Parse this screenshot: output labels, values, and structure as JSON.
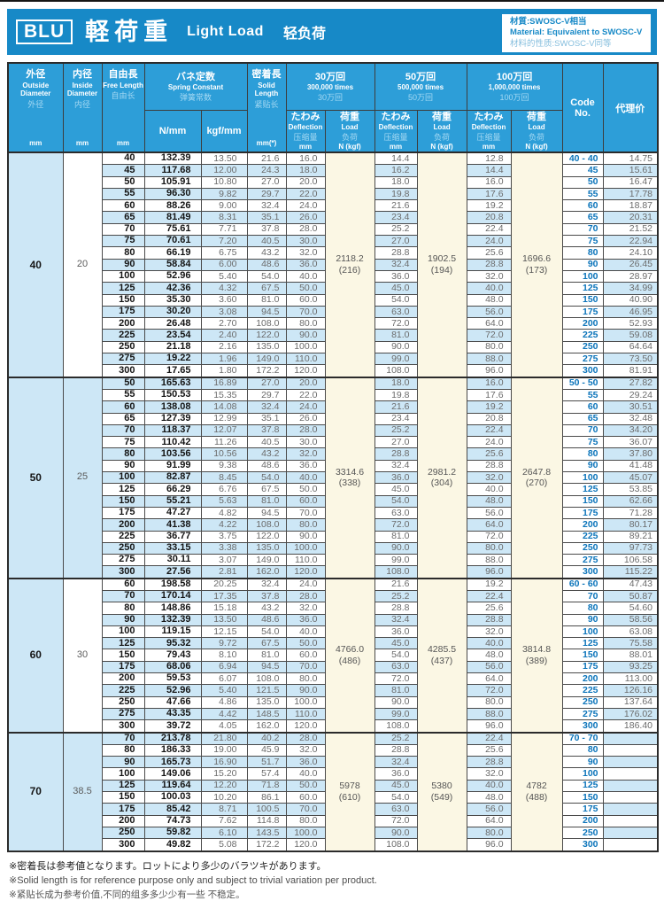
{
  "header": {
    "model": "BLU",
    "title_ja": "軽荷重",
    "title_en": "Light Load",
    "title_zh": "轻负荷",
    "material": {
      "line1": "材質:SWOSC-V相当",
      "line2": "Material: Equivalent to SWOSC-V",
      "line3": "材料的性质:SWOSC-V同等"
    }
  },
  "columns": {
    "od": {
      "ja": "外径",
      "en": "Outside Diameter",
      "zh": "外径",
      "unit": "mm"
    },
    "id": {
      "ja": "内径",
      "en": "Inside Diameter",
      "zh": "内径",
      "unit": "mm"
    },
    "fl": {
      "ja": "自由長",
      "en": "Free Length",
      "zh": "自由长",
      "unit": "mm"
    },
    "spring": {
      "ja": "バネ定数",
      "en": "Spring Constant",
      "zh": "弹簧常数",
      "unit_n": "N/mm",
      "unit_kgf": "kgf/mm"
    },
    "sl": {
      "ja": "密着長",
      "en": "Solid Length",
      "zh": "紧贴长",
      "unit": "mm(*)"
    },
    "cycles": [
      {
        "ja": "30万回",
        "en": "300,000 times",
        "zh": "30万回"
      },
      {
        "ja": "50万回",
        "en": "500,000 times",
        "zh": "50万回"
      },
      {
        "ja": "100万回",
        "en": "1,000,000 times",
        "zh": "100万回"
      }
    ],
    "deflection": {
      "ja": "たわみ",
      "en": "Deflection",
      "zh": "压缩量",
      "unit": "mm"
    },
    "load": {
      "ja": "荷重",
      "en": "Load",
      "zh": "负荷",
      "unit": "N (kgf)"
    },
    "code": "Code No.",
    "price": "代理价"
  },
  "table": {
    "groups": [
      {
        "od": "40",
        "id": "20",
        "load_300k": {
          "n": "2118.2",
          "kgf": "(216)"
        },
        "load_500k": {
          "n": "1902.5",
          "kgf": "(194)"
        },
        "load_1m": {
          "n": "1696.6",
          "kgf": "(173)"
        },
        "rows": [
          [
            "40",
            "132.39",
            "13.50",
            "21.6",
            "16.0",
            "14.4",
            "12.8",
            "40 - 40",
            "14.75"
          ],
          [
            "45",
            "117.68",
            "12.00",
            "24.3",
            "18.0",
            "16.2",
            "14.4",
            "45",
            "15.61"
          ],
          [
            "50",
            "105.91",
            "10.80",
            "27.0",
            "20.0",
            "18.0",
            "16.0",
            "50",
            "16.47"
          ],
          [
            "55",
            "96.30",
            "9.82",
            "29.7",
            "22.0",
            "19.8",
            "17.6",
            "55",
            "17.78"
          ],
          [
            "60",
            "88.26",
            "9.00",
            "32.4",
            "24.0",
            "21.6",
            "19.2",
            "60",
            "18.87"
          ],
          [
            "65",
            "81.49",
            "8.31",
            "35.1",
            "26.0",
            "23.4",
            "20.8",
            "65",
            "20.31"
          ],
          [
            "70",
            "75.61",
            "7.71",
            "37.8",
            "28.0",
            "25.2",
            "22.4",
            "70",
            "21.52"
          ],
          [
            "75",
            "70.61",
            "7.20",
            "40.5",
            "30.0",
            "27.0",
            "24.0",
            "75",
            "22.94"
          ],
          [
            "80",
            "66.19",
            "6.75",
            "43.2",
            "32.0",
            "28.8",
            "25.6",
            "80",
            "24.10"
          ],
          [
            "90",
            "58.84",
            "6.00",
            "48.6",
            "36.0",
            "32.4",
            "28.8",
            "90",
            "26.45"
          ],
          [
            "100",
            "52.96",
            "5.40",
            "54.0",
            "40.0",
            "36.0",
            "32.0",
            "100",
            "28.97"
          ],
          [
            "125",
            "42.36",
            "4.32",
            "67.5",
            "50.0",
            "45.0",
            "40.0",
            "125",
            "34.99"
          ],
          [
            "150",
            "35.30",
            "3.60",
            "81.0",
            "60.0",
            "54.0",
            "48.0",
            "150",
            "40.90"
          ],
          [
            "175",
            "30.20",
            "3.08",
            "94.5",
            "70.0",
            "63.0",
            "56.0",
            "175",
            "46.95"
          ],
          [
            "200",
            "26.48",
            "2.70",
            "108.0",
            "80.0",
            "72.0",
            "64.0",
            "200",
            "52.93"
          ],
          [
            "225",
            "23.54",
            "2.40",
            "122.0",
            "90.0",
            "81.0",
            "72.0",
            "225",
            "59.08"
          ],
          [
            "250",
            "21.18",
            "2.16",
            "135.0",
            "100.0",
            "90.0",
            "80.0",
            "250",
            "64.64"
          ],
          [
            "275",
            "19.22",
            "1.96",
            "149.0",
            "110.0",
            "99.0",
            "88.0",
            "275",
            "73.50"
          ],
          [
            "300",
            "17.65",
            "1.80",
            "172.2",
            "120.0",
            "108.0",
            "96.0",
            "300",
            "81.91"
          ]
        ]
      },
      {
        "od": "50",
        "id": "25",
        "load_300k": {
          "n": "3314.6",
          "kgf": "(338)"
        },
        "load_500k": {
          "n": "2981.2",
          "kgf": "(304)"
        },
        "load_1m": {
          "n": "2647.8",
          "kgf": "(270)"
        },
        "rows": [
          [
            "50",
            "165.63",
            "16.89",
            "27.0",
            "20.0",
            "18.0",
            "16.0",
            "50 - 50",
            "27.82"
          ],
          [
            "55",
            "150.53",
            "15.35",
            "29.7",
            "22.0",
            "19.8",
            "17.6",
            "55",
            "29.24"
          ],
          [
            "60",
            "138.08",
            "14.08",
            "32.4",
            "24.0",
            "21.6",
            "19.2",
            "60",
            "30.51"
          ],
          [
            "65",
            "127.39",
            "12.99",
            "35.1",
            "26.0",
            "23.4",
            "20.8",
            "65",
            "32.48"
          ],
          [
            "70",
            "118.37",
            "12.07",
            "37.8",
            "28.0",
            "25.2",
            "22.4",
            "70",
            "34.20"
          ],
          [
            "75",
            "110.42",
            "11.26",
            "40.5",
            "30.0",
            "27.0",
            "24.0",
            "75",
            "36.07"
          ],
          [
            "80",
            "103.56",
            "10.56",
            "43.2",
            "32.0",
            "28.8",
            "25.6",
            "80",
            "37.80"
          ],
          [
            "90",
            "91.99",
            "9.38",
            "48.6",
            "36.0",
            "32.4",
            "28.8",
            "90",
            "41.48"
          ],
          [
            "100",
            "82.87",
            "8.45",
            "54.0",
            "40.0",
            "36.0",
            "32.0",
            "100",
            "45.07"
          ],
          [
            "125",
            "66.29",
            "6.76",
            "67.5",
            "50.0",
            "45.0",
            "40.0",
            "125",
            "53.85"
          ],
          [
            "150",
            "55.21",
            "5.63",
            "81.0",
            "60.0",
            "54.0",
            "48.0",
            "150",
            "62.66"
          ],
          [
            "175",
            "47.27",
            "4.82",
            "94.5",
            "70.0",
            "63.0",
            "56.0",
            "175",
            "71.28"
          ],
          [
            "200",
            "41.38",
            "4.22",
            "108.0",
            "80.0",
            "72.0",
            "64.0",
            "200",
            "80.17"
          ],
          [
            "225",
            "36.77",
            "3.75",
            "122.0",
            "90.0",
            "81.0",
            "72.0",
            "225",
            "89.21"
          ],
          [
            "250",
            "33.15",
            "3.38",
            "135.0",
            "100.0",
            "90.0",
            "80.0",
            "250",
            "97.73"
          ],
          [
            "275",
            "30.11",
            "3.07",
            "149.0",
            "110.0",
            "99.0",
            "88.0",
            "275",
            "106.58"
          ],
          [
            "300",
            "27.56",
            "2.81",
            "162.0",
            "120.0",
            "108.0",
            "96.0",
            "300",
            "115.22"
          ]
        ]
      },
      {
        "od": "60",
        "id": "30",
        "load_300k": {
          "n": "4766.0",
          "kgf": "(486)"
        },
        "load_500k": {
          "n": "4285.5",
          "kgf": "(437)"
        },
        "load_1m": {
          "n": "3814.8",
          "kgf": "(389)"
        },
        "rows": [
          [
            "60",
            "198.58",
            "20.25",
            "32.4",
            "24.0",
            "21.6",
            "19.2",
            "60 - 60",
            "47.43"
          ],
          [
            "70",
            "170.14",
            "17.35",
            "37.8",
            "28.0",
            "25.2",
            "22.4",
            "70",
            "50.87"
          ],
          [
            "80",
            "148.86",
            "15.18",
            "43.2",
            "32.0",
            "28.8",
            "25.6",
            "80",
            "54.60"
          ],
          [
            "90",
            "132.39",
            "13.50",
            "48.6",
            "36.0",
            "32.4",
            "28.8",
            "90",
            "58.56"
          ],
          [
            "100",
            "119.15",
            "12.15",
            "54.0",
            "40.0",
            "36.0",
            "32.0",
            "100",
            "63.08"
          ],
          [
            "125",
            "95.32",
            "9.72",
            "67.5",
            "50.0",
            "45.0",
            "40.0",
            "125",
            "75.58"
          ],
          [
            "150",
            "79.43",
            "8.10",
            "81.0",
            "60.0",
            "54.0",
            "48.0",
            "150",
            "88.01"
          ],
          [
            "175",
            "68.06",
            "6.94",
            "94.5",
            "70.0",
            "63.0",
            "56.0",
            "175",
            "93.25"
          ],
          [
            "200",
            "59.53",
            "6.07",
            "108.0",
            "80.0",
            "72.0",
            "64.0",
            "200",
            "113.00"
          ],
          [
            "225",
            "52.96",
            "5.40",
            "121.5",
            "90.0",
            "81.0",
            "72.0",
            "225",
            "126.16"
          ],
          [
            "250",
            "47.66",
            "4.86",
            "135.0",
            "100.0",
            "90.0",
            "80.0",
            "250",
            "137.64"
          ],
          [
            "275",
            "43.35",
            "4.42",
            "148.5",
            "110.0",
            "99.0",
            "88.0",
            "275",
            "176.02"
          ],
          [
            "300",
            "39.72",
            "4.05",
            "162.0",
            "120.0",
            "108.0",
            "96.0",
            "300",
            "186.40"
          ]
        ]
      },
      {
        "od": "70",
        "id": "38.5",
        "load_300k": {
          "n": "5978",
          "kgf": "(610)"
        },
        "load_500k": {
          "n": "5380",
          "kgf": "(549)"
        },
        "load_1m": {
          "n": "4782",
          "kgf": "(488)"
        },
        "rows": [
          [
            "70",
            "213.78",
            "21.80",
            "40.2",
            "28.0",
            "25.2",
            "22.4",
            "70 - 70",
            ""
          ],
          [
            "80",
            "186.33",
            "19.00",
            "45.9",
            "32.0",
            "28.8",
            "25.6",
            "80",
            ""
          ],
          [
            "90",
            "165.73",
            "16.90",
            "51.7",
            "36.0",
            "32.4",
            "28.8",
            "90",
            ""
          ],
          [
            "100",
            "149.06",
            "15.20",
            "57.4",
            "40.0",
            "36.0",
            "32.0",
            "100",
            ""
          ],
          [
            "125",
            "119.64",
            "12.20",
            "71.8",
            "50.0",
            "45.0",
            "40.0",
            "125",
            ""
          ],
          [
            "150",
            "100.03",
            "10.20",
            "86.1",
            "60.0",
            "54.0",
            "48.0",
            "150",
            ""
          ],
          [
            "175",
            "85.42",
            "8.71",
            "100.5",
            "70.0",
            "63.0",
            "56.0",
            "175",
            ""
          ],
          [
            "200",
            "74.73",
            "7.62",
            "114.8",
            "80.0",
            "72.0",
            "64.0",
            "200",
            ""
          ],
          [
            "250",
            "59.82",
            "6.10",
            "143.5",
            "100.0",
            "90.0",
            "80.0",
            "250",
            ""
          ],
          [
            "300",
            "49.82",
            "5.08",
            "172.2",
            "120.0",
            "108.0",
            "96.0",
            "300",
            ""
          ]
        ]
      }
    ]
  },
  "notes": {
    "ja": "※密着長は参考値となります。ロットにより多少のバラツキがあります。",
    "en": "※Solid length is for reference purpose only and subject to trivial variation per product.",
    "zh": "※紧贴长成为参考价值,不同的组多多少少有一些 不稳定。"
  },
  "colors": {
    "title_bar": "#1789c7",
    "header_cell": "#2d9ed8",
    "alt_row": "#cde7f6",
    "load_column": "#fbf7e4",
    "code_text": "#0b74ba"
  }
}
